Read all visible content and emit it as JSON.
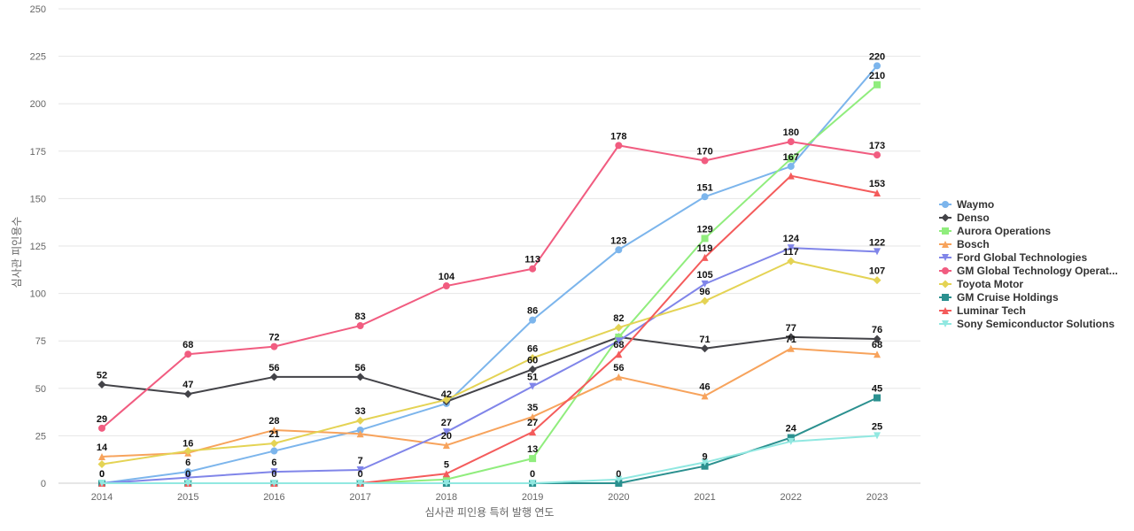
{
  "chart_data": {
    "type": "line",
    "title": "",
    "xlabel": "심사관 피인용 특허 발행 연도",
    "ylabel": "심사관 피인용수",
    "x": [
      "2014",
      "2015",
      "2016",
      "2017",
      "2018",
      "2019",
      "2020",
      "2021",
      "2022",
      "2023"
    ],
    "ylim": [
      0,
      250
    ],
    "yticks": [
      0,
      25,
      50,
      75,
      100,
      125,
      150,
      175,
      200,
      225,
      250
    ],
    "grid": true,
    "legend_position": "right",
    "series": [
      {
        "name": "Waymo",
        "color": "#7cb5ec",
        "marker": "circle",
        "values": [
          0,
          6,
          17,
          28,
          42,
          86,
          123,
          151,
          167,
          220
        ],
        "labels": [
          true,
          true,
          false,
          false,
          true,
          true,
          true,
          true,
          true,
          true
        ]
      },
      {
        "name": "Denso",
        "color": "#434348",
        "marker": "diamond",
        "values": [
          52,
          47,
          56,
          56,
          43,
          60,
          77,
          71,
          77,
          76
        ],
        "labels": [
          true,
          true,
          true,
          true,
          false,
          true,
          false,
          true,
          true,
          true
        ]
      },
      {
        "name": "Aurora Operations",
        "color": "#90ed7d",
        "marker": "square",
        "values": [
          0,
          0,
          0,
          0,
          2,
          13,
          77,
          129,
          171,
          210
        ],
        "labels": [
          false,
          false,
          false,
          false,
          false,
          true,
          false,
          true,
          false,
          true
        ]
      },
      {
        "name": "Bosch",
        "color": "#f7a35c",
        "marker": "triangle",
        "values": [
          14,
          16,
          28,
          26,
          20,
          35,
          56,
          46,
          71,
          68
        ],
        "labels": [
          true,
          true,
          true,
          false,
          true,
          true,
          true,
          true,
          true,
          true
        ]
      },
      {
        "name": "Ford Global Technologies",
        "color": "#8085e9",
        "marker": "triangle-down",
        "values": [
          0,
          3,
          6,
          7,
          27,
          51,
          75,
          105,
          124,
          122
        ],
        "labels": [
          false,
          false,
          true,
          true,
          true,
          true,
          false,
          true,
          true,
          true
        ]
      },
      {
        "name": "GM Global Technology Operat...",
        "color": "#f15c80",
        "marker": "circle",
        "values": [
          29,
          68,
          72,
          83,
          104,
          113,
          178,
          170,
          180,
          173
        ],
        "labels": [
          true,
          true,
          true,
          true,
          true,
          true,
          true,
          true,
          true,
          true
        ]
      },
      {
        "name": "Toyota Motor",
        "color": "#e4d354",
        "marker": "diamond",
        "values": [
          10,
          17,
          21,
          33,
          44,
          66,
          82,
          96,
          117,
          107
        ],
        "labels": [
          false,
          false,
          true,
          true,
          false,
          true,
          true,
          true,
          true,
          true
        ]
      },
      {
        "name": "GM Cruise Holdings",
        "color": "#2b908f",
        "marker": "square",
        "values": [
          0,
          0,
          0,
          0,
          0,
          0,
          0,
          9,
          24,
          45
        ],
        "labels": [
          true,
          true,
          true,
          true,
          false,
          true,
          true,
          true,
          true,
          true
        ]
      },
      {
        "name": "Luminar Tech",
        "color": "#f45b5b",
        "marker": "triangle",
        "values": [
          0,
          0,
          0,
          0,
          5,
          27,
          68,
          119,
          162,
          153
        ],
        "labels": [
          false,
          false,
          false,
          false,
          true,
          true,
          true,
          true,
          false,
          true
        ]
      },
      {
        "name": "Sony Semiconductor Solutions",
        "color": "#91e8e1",
        "marker": "triangle-down",
        "values": [
          0,
          0,
          0,
          0,
          0,
          0,
          2,
          11,
          22,
          25
        ],
        "labels": [
          false,
          false,
          false,
          false,
          false,
          false,
          false,
          false,
          false,
          true
        ]
      }
    ]
  }
}
